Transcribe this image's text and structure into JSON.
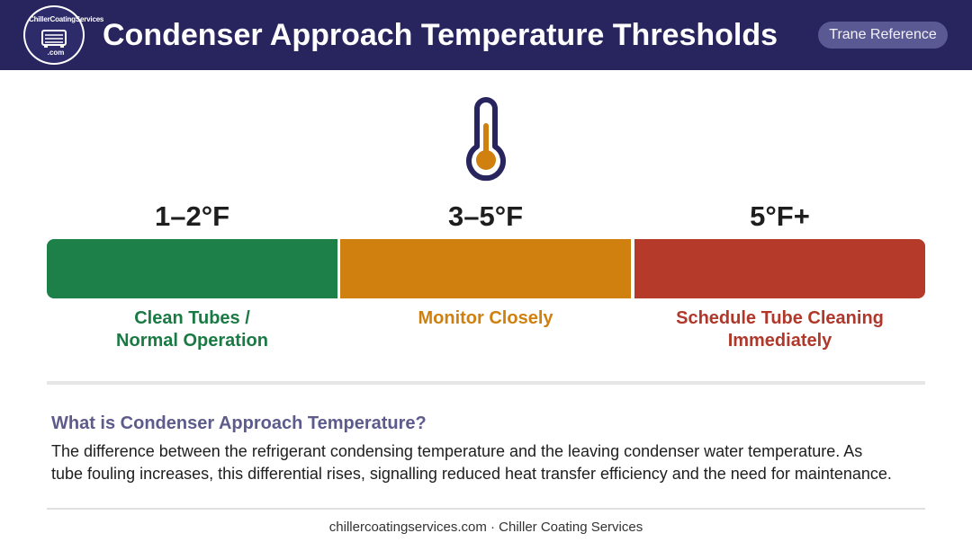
{
  "header": {
    "logo": {
      "top_text": "ChillerCoatingServices",
      "bottom_text": ".com",
      "icon": "chiller-unit-icon"
    },
    "title": "Condenser Approach Temperature Thresholds",
    "badge": "Trane Reference"
  },
  "thermometer": {
    "icon": "thermometer-icon"
  },
  "thresholds": [
    {
      "range": "1–2°F",
      "status_line1": "Clean Tubes /",
      "status_line2": "Normal Operation",
      "color": "#1e8049"
    },
    {
      "range": "3–5°F",
      "status_line1": "Monitor Closely",
      "status_line2": "",
      "color": "#d0800f"
    },
    {
      "range": "5°F+",
      "status_line1": "Schedule Tube Cleaning",
      "status_line2": "Immediately",
      "color": "#b53a2a"
    }
  ],
  "definition": {
    "heading": "What is Condenser Approach Temperature?",
    "line1": "The difference between the refrigerant condensing temperature and the leaving condenser water temperature. As",
    "line2": "tube fouling increases, this differential rises, signalling reduced heat transfer efficiency and the need for maintenance."
  },
  "footer": {
    "text": "chillercoatingservices.com · Chiller Coating Services"
  },
  "colors": {
    "header_bg": "#27245e",
    "badge_bg": "#5b5994",
    "heading_accent": "#5d5b8c",
    "thermometer_outline": "#27245e",
    "thermometer_fill": "#d0800f"
  }
}
